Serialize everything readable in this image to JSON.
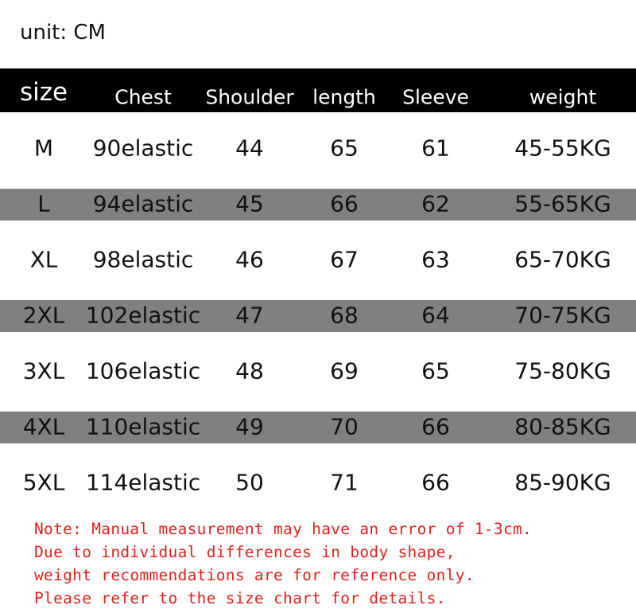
{
  "unit_label": "unit: CM",
  "headers": [
    "size",
    "Chest",
    "Shoulder",
    "length",
    "Sleeve",
    "weight"
  ],
  "rows": [
    [
      "M",
      "90elastic",
      "44",
      "65",
      "61",
      "45-55KG"
    ],
    [
      "L",
      "94elastic",
      "45",
      "66",
      "62",
      "55-65KG"
    ],
    [
      "XL",
      "98elastic",
      "46",
      "67",
      "63",
      "65-70KG"
    ],
    [
      "2XL",
      "102elastic",
      "47",
      "68",
      "64",
      "70-75KG"
    ],
    [
      "3XL",
      "106elastic",
      "48",
      "69",
      "65",
      "75-80KG"
    ],
    [
      "4XL",
      "110elastic",
      "49",
      "70",
      "66",
      "80-85KG"
    ],
    [
      "5XL",
      "114elastic",
      "50",
      "71",
      "66",
      "85-90KG"
    ]
  ],
  "notes": [
    "Note: Manual measurement may have an error of 1-3cm.",
    "Due to individual differences in body shape,",
    "weight recommendations are for reference only.",
    "Please refer to the size chart for details."
  ],
  "colors": {
    "header_bg": "#000000",
    "band_bg": "#808080",
    "note_text": "#e0201c"
  }
}
